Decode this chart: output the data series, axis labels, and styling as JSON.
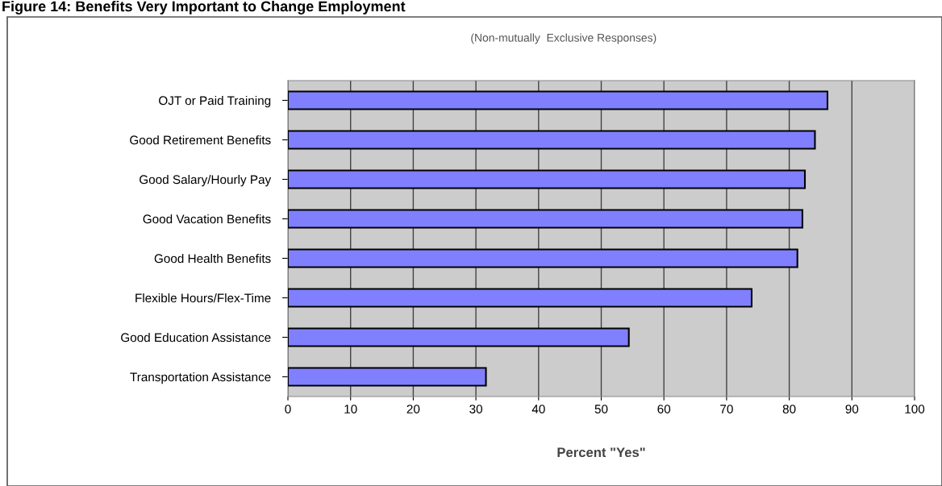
{
  "chart_data": {
    "type": "bar",
    "orientation": "horizontal",
    "title": "Figure 14: Benefits Very Important to Change Employment",
    "subtitle": "(Non-mutually  Exclusive Responses)",
    "xlabel": "Percent \"Yes\"",
    "categories": [
      "OJT or Paid Training",
      "Good Retirement Benefits",
      "Good Salary/Hourly Pay",
      "Good Vacation Benefits",
      "Good Health Benefits",
      "Flexible Hours/Flex-Time",
      "Good Education Assistance",
      "Transportation Assistance"
    ],
    "values": [
      86.1,
      84.1,
      82.5,
      82.1,
      81.3,
      74.0,
      54.4,
      31.6
    ],
    "color": "#8080ff",
    "xlim": [
      0,
      100
    ],
    "xticks": [
      0,
      10,
      20,
      30,
      40,
      50,
      60,
      70,
      80,
      90,
      100
    ],
    "grid": "x",
    "legend": false
  }
}
